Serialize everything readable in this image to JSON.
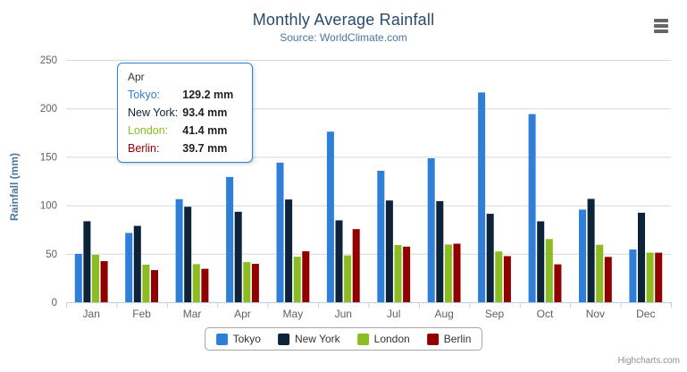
{
  "chart_data": {
    "type": "bar",
    "title": "Monthly Average Rainfall",
    "subtitle": "Source: WorldClimate.com",
    "categories": [
      "Jan",
      "Feb",
      "Mar",
      "Apr",
      "May",
      "Jun",
      "Jul",
      "Aug",
      "Sep",
      "Oct",
      "Nov",
      "Dec"
    ],
    "series": [
      {
        "name": "Tokyo",
        "color": "#2f7ed8",
        "values": [
          49.9,
          71.5,
          106.4,
          129.2,
          144.0,
          176.0,
          135.6,
          148.5,
          216.4,
          194.1,
          95.6,
          54.4
        ]
      },
      {
        "name": "New York",
        "color": "#0d233a",
        "values": [
          83.6,
          78.8,
          98.5,
          93.4,
          106.0,
          84.5,
          105.0,
          104.3,
          91.2,
          83.5,
          106.6,
          92.3
        ]
      },
      {
        "name": "London",
        "color": "#8bbc21",
        "values": [
          48.9,
          38.8,
          39.3,
          41.4,
          47.0,
          48.3,
          59.0,
          59.6,
          52.4,
          65.2,
          59.3,
          51.2
        ]
      },
      {
        "name": "Berlin",
        "color": "#910000",
        "values": [
          42.4,
          33.2,
          34.5,
          39.7,
          52.6,
          75.5,
          57.4,
          60.4,
          47.6,
          39.1,
          46.8,
          51.1
        ]
      }
    ],
    "xlabel": "",
    "ylabel": "Rainfall (mm)",
    "ylim": [
      0,
      250
    ],
    "yticks": [
      0,
      50,
      100,
      150,
      200,
      250
    ],
    "grid": true,
    "legend_position": "bottom"
  },
  "tooltip": {
    "header": "Apr",
    "rows": [
      {
        "label": "Tokyo:",
        "value": "129.2 mm"
      },
      {
        "label": "New York:",
        "value": "93.4 mm"
      },
      {
        "label": "London:",
        "value": "41.4 mm"
      },
      {
        "label": "Berlin:",
        "value": "39.7 mm"
      }
    ]
  },
  "credits": {
    "label": "Highcharts.com"
  },
  "colors": {
    "title": "#274b6d",
    "subtitle": "#4d759e",
    "axis_title": "#4d759e",
    "axis_labels": "#606060",
    "grid_line": "#d8d8d8",
    "axis_line": "#c0d0e0",
    "tooltip_border": "#2f7ed8",
    "legend_text": "#333333"
  }
}
